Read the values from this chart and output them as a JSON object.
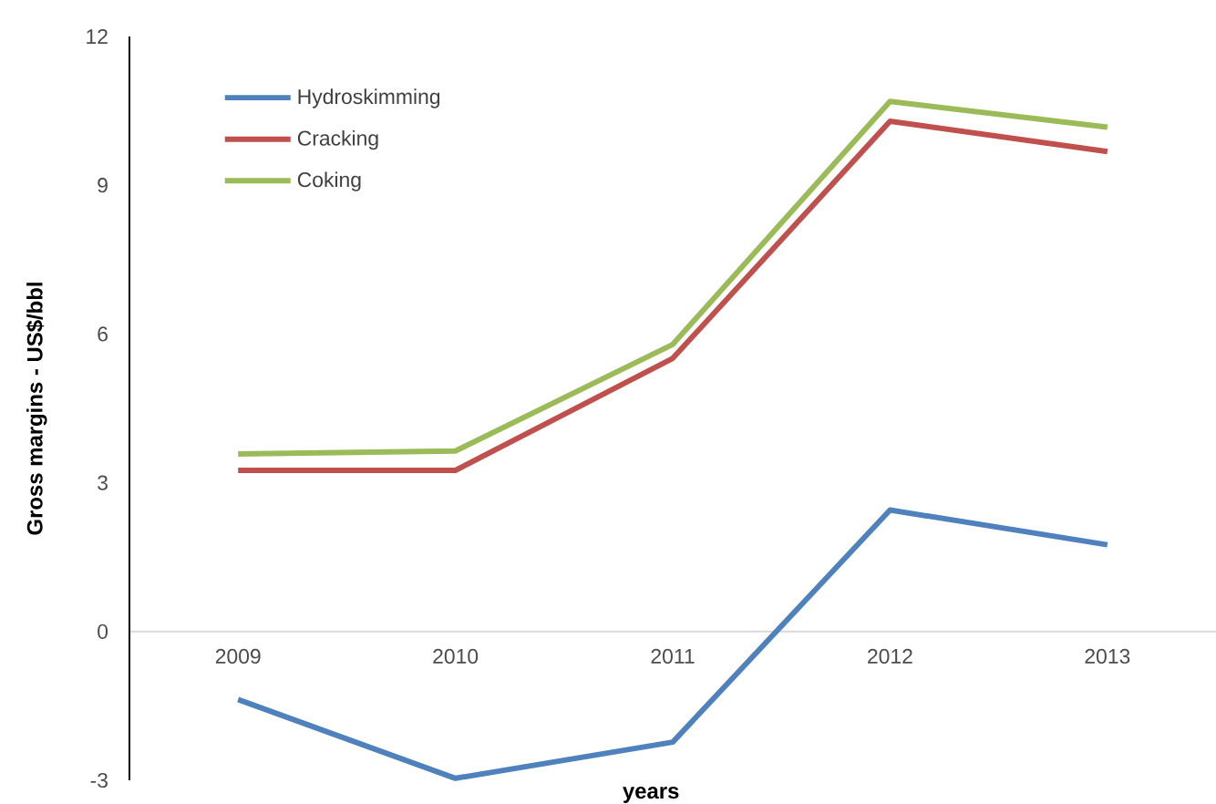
{
  "chart_data": {
    "type": "line",
    "xlabel": "years",
    "ylabel": "Gross margins - US$/bbl",
    "categories": [
      "2009",
      "2010",
      "2011",
      "2012",
      "2013"
    ],
    "series": [
      {
        "name": "Hydroskimming",
        "color": "#4f81bd",
        "values": [
          -1.37,
          -2.96,
          -2.23,
          2.45,
          1.75
        ]
      },
      {
        "name": "Cracking",
        "color": "#c0504d",
        "values": [
          3.25,
          3.25,
          5.51,
          10.29,
          9.68
        ]
      },
      {
        "name": "Coking",
        "color": "#9bbb59",
        "values": [
          3.58,
          3.64,
          5.79,
          10.69,
          10.17
        ]
      }
    ],
    "ylim": [
      -3,
      12
    ],
    "yticks": [
      -3,
      0,
      3,
      6,
      9,
      12
    ],
    "legend": "top left",
    "grid": false,
    "marker": "none",
    "line_style": "solid"
  }
}
